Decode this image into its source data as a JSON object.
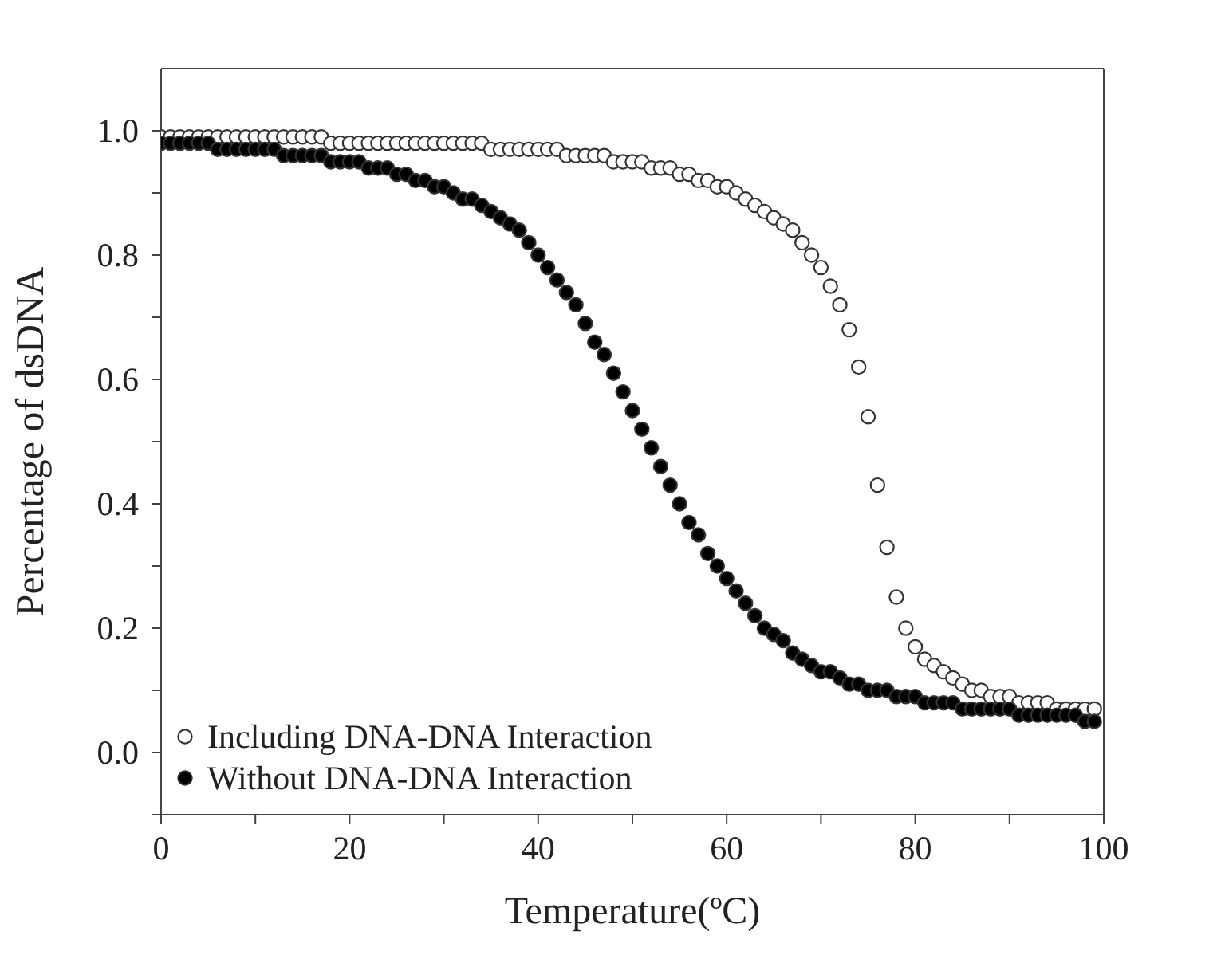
{
  "chart_data": {
    "type": "scatter",
    "xlabel": "Temperature(ºC)",
    "ylabel": "Percentage of dsDNA",
    "x": [
      0,
      1,
      2,
      3,
      4,
      5,
      6,
      7,
      8,
      9,
      10,
      11,
      12,
      13,
      14,
      15,
      16,
      17,
      18,
      19,
      20,
      21,
      22,
      23,
      24,
      25,
      26,
      27,
      28,
      29,
      30,
      31,
      32,
      33,
      34,
      35,
      36,
      37,
      38,
      39,
      40,
      41,
      42,
      43,
      44,
      45,
      46,
      47,
      48,
      49,
      50,
      51,
      52,
      53,
      54,
      55,
      56,
      57,
      58,
      59,
      60,
      61,
      62,
      63,
      64,
      65,
      66,
      67,
      68,
      69,
      70,
      71,
      72,
      73,
      74,
      75,
      76,
      77,
      78,
      79,
      80,
      81,
      82,
      83,
      84,
      85,
      86,
      87,
      88,
      89,
      90,
      91,
      92,
      93,
      94,
      95,
      96,
      97,
      98,
      99
    ],
    "series": [
      {
        "name": "Including DNA-DNA Interaction",
        "color": "#ffffff",
        "values": [
          0.99,
          0.99,
          0.99,
          0.99,
          0.99,
          0.99,
          0.99,
          0.99,
          0.99,
          0.99,
          0.99,
          0.99,
          0.99,
          0.99,
          0.99,
          0.99,
          0.99,
          0.99,
          0.98,
          0.98,
          0.98,
          0.98,
          0.98,
          0.98,
          0.98,
          0.98,
          0.98,
          0.98,
          0.98,
          0.98,
          0.98,
          0.98,
          0.98,
          0.98,
          0.98,
          0.97,
          0.97,
          0.97,
          0.97,
          0.97,
          0.97,
          0.97,
          0.97,
          0.96,
          0.96,
          0.96,
          0.96,
          0.96,
          0.95,
          0.95,
          0.95,
          0.95,
          0.94,
          0.94,
          0.94,
          0.93,
          0.93,
          0.92,
          0.92,
          0.91,
          0.91,
          0.9,
          0.89,
          0.88,
          0.87,
          0.86,
          0.85,
          0.84,
          0.82,
          0.8,
          0.78,
          0.75,
          0.72,
          0.68,
          0.62,
          0.54,
          0.43,
          0.33,
          0.25,
          0.2,
          0.17,
          0.15,
          0.14,
          0.13,
          0.12,
          0.11,
          0.1,
          0.1,
          0.09,
          0.09,
          0.09,
          0.08,
          0.08,
          0.08,
          0.08,
          0.07,
          0.07,
          0.07,
          0.07,
          0.07
        ]
      },
      {
        "name": "Without DNA-DNA Interaction",
        "color": "#000000",
        "values": [
          0.98,
          0.98,
          0.98,
          0.98,
          0.98,
          0.98,
          0.97,
          0.97,
          0.97,
          0.97,
          0.97,
          0.97,
          0.97,
          0.96,
          0.96,
          0.96,
          0.96,
          0.96,
          0.95,
          0.95,
          0.95,
          0.95,
          0.94,
          0.94,
          0.94,
          0.93,
          0.93,
          0.92,
          0.92,
          0.91,
          0.91,
          0.9,
          0.89,
          0.89,
          0.88,
          0.87,
          0.86,
          0.85,
          0.84,
          0.82,
          0.8,
          0.78,
          0.76,
          0.74,
          0.72,
          0.69,
          0.66,
          0.64,
          0.61,
          0.58,
          0.55,
          0.52,
          0.49,
          0.46,
          0.43,
          0.4,
          0.37,
          0.35,
          0.32,
          0.3,
          0.28,
          0.26,
          0.24,
          0.22,
          0.2,
          0.19,
          0.18,
          0.16,
          0.15,
          0.14,
          0.13,
          0.13,
          0.12,
          0.11,
          0.11,
          0.1,
          0.1,
          0.1,
          0.09,
          0.09,
          0.09,
          0.08,
          0.08,
          0.08,
          0.08,
          0.07,
          0.07,
          0.07,
          0.07,
          0.07,
          0.07,
          0.06,
          0.06,
          0.06,
          0.06,
          0.06,
          0.06,
          0.06,
          0.05,
          0.05
        ]
      }
    ],
    "xlim": [
      0,
      100
    ],
    "xticks": [
      0,
      {
        "value": 10,
        "label": null
      },
      20,
      {
        "value": 30,
        "label": null
      },
      40,
      {
        "value": 50,
        "label": null
      },
      60,
      {
        "value": 70,
        "label": null
      },
      80,
      {
        "value": 90,
        "label": null
      },
      100
    ],
    "ylim": [
      -0.1,
      1.1
    ],
    "yticks": [
      {
        "value": -0.1,
        "label": null
      },
      {
        "value": 0,
        "label": "0.0"
      },
      {
        "value": 0.1,
        "label": null
      },
      {
        "value": 0.2,
        "label": "0.2"
      },
      {
        "value": 0.3,
        "label": null
      },
      {
        "value": 0.4,
        "label": "0.4"
      },
      {
        "value": 0.5,
        "label": null
      },
      {
        "value": 0.6,
        "label": "0.6"
      },
      {
        "value": 0.7,
        "label": null
      },
      {
        "value": 0.8,
        "label": "0.8"
      },
      {
        "value": 0.9,
        "label": null
      },
      {
        "value": 1,
        "label": "1.0"
      }
    ],
    "marker": "circle",
    "legend": "bottom left"
  }
}
